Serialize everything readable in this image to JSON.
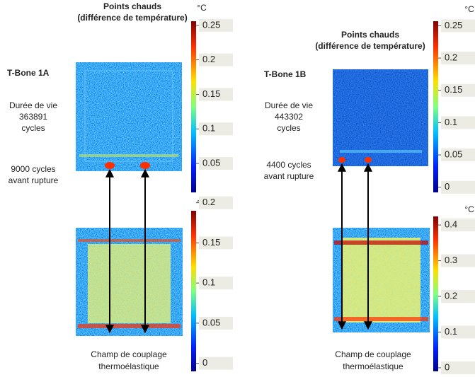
{
  "panels": [
    {
      "title": "Points chauds",
      "subtitle": "(différence de température)",
      "specimen": "T-Bone 1A",
      "life_label": "Durée de vie",
      "life_cycles": 363891,
      "life_unit": "cycles",
      "before_rupture": "9000 cycles",
      "before_rupture_2": "avant rupture",
      "top_colorbar": {
        "unit": "°C",
        "lim": [
          0.008,
          0.256
        ],
        "ticks": [
          0.05,
          0.1,
          0.15,
          0.2,
          0.25
        ]
      },
      "bottom_colorbar": {
        "unit": "°C",
        "lim": [
          -0.01,
          0.19
        ],
        "ticks": [
          0,
          0.05,
          0.1,
          0.15,
          0.2
        ]
      },
      "caption": [
        "Champ de couplage",
        "thermoélastique"
      ]
    },
    {
      "title": "Points chauds",
      "subtitle": "(différence de température)",
      "specimen": "T-Bone 1B",
      "life_label": "Durée de vie",
      "life_cycles": 443302,
      "life_unit": "cycles",
      "before_rupture": "4400 cycles",
      "before_rupture_2": "avant rupture",
      "top_colorbar": {
        "unit": "°C",
        "lim": [
          -0.008,
          0.257
        ],
        "ticks": [
          0,
          0.05,
          0.1,
          0.15,
          0.2,
          0.25
        ]
      },
      "bottom_colorbar": {
        "unit": "°C",
        "lim": [
          -0.01,
          0.424
        ],
        "ticks": [
          0,
          0.1,
          0.2,
          0.3,
          0.4
        ]
      },
      "caption": [
        "Champ de couplage",
        "thermoélastique"
      ]
    }
  ]
}
